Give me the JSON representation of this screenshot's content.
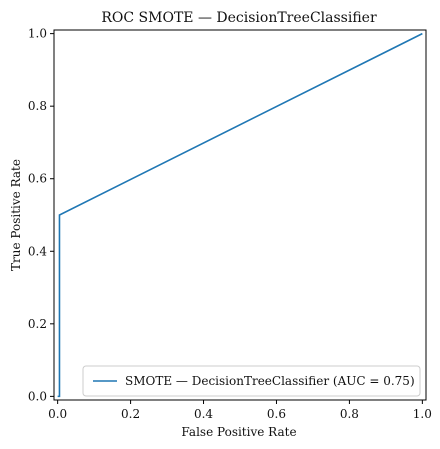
{
  "chart_data": {
    "type": "line",
    "title": "ROC SMOTE — DecisionTreeClassifier",
    "xlabel": "False Positive Rate",
    "ylabel": "True Positive Rate",
    "xlim": [
      -0.01,
      1.01
    ],
    "ylim": [
      -0.01,
      1.01
    ],
    "x_ticks": [
      "0.0",
      "0.2",
      "0.4",
      "0.6",
      "0.8",
      "1.0"
    ],
    "y_ticks": [
      "0.0",
      "0.2",
      "0.4",
      "0.6",
      "0.8",
      "1.0"
    ],
    "grid": false,
    "legend_position": "bottom-right",
    "series": [
      {
        "name": "SMOTE — DecisionTreeClassifier (AUC = 0.75)",
        "color": "#1f77b4",
        "x": [
          0.0,
          0.0,
          0.005,
          0.005,
          1.0
        ],
        "y": [
          0.0,
          0.0,
          0.0,
          0.5,
          1.0
        ]
      }
    ]
  }
}
